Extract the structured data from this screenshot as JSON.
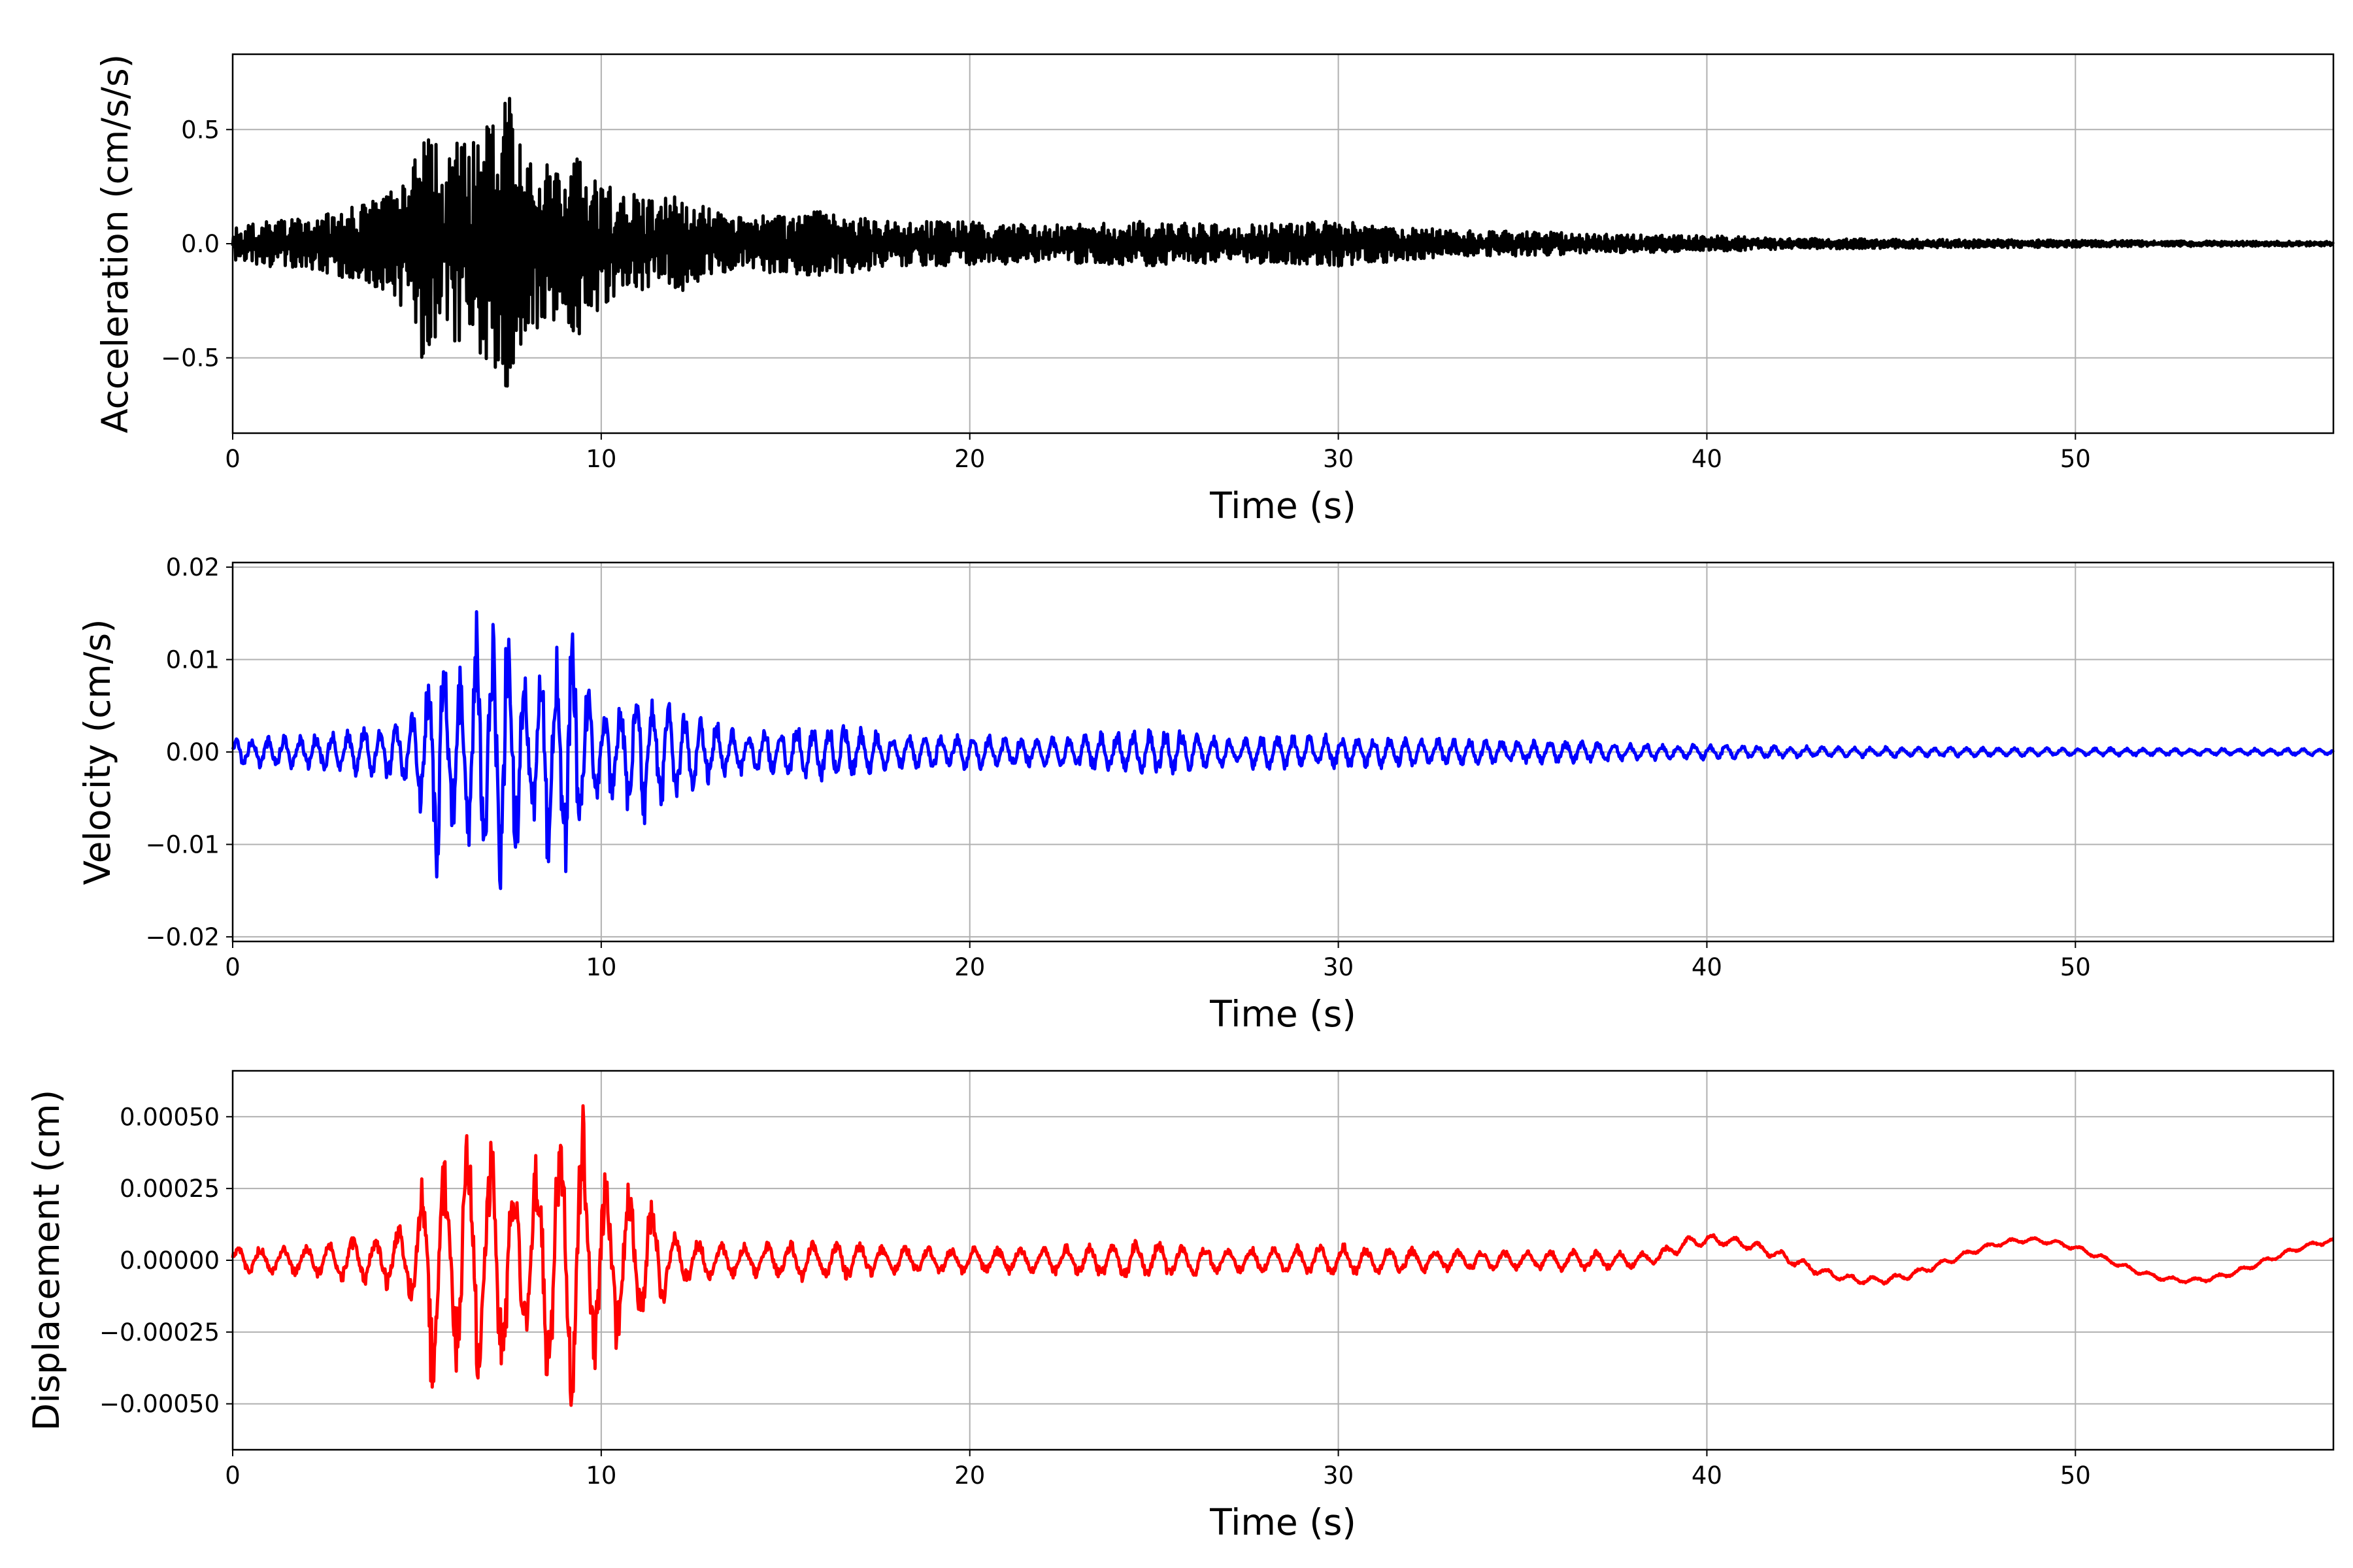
{
  "chart_data": [
    {
      "type": "line",
      "id": "acceleration",
      "xlabel": "Time (s)",
      "ylabel": "Acceleration (cm/s/s)",
      "xlim": [
        0,
        57
      ],
      "ylim": [
        -0.83,
        0.83
      ],
      "xticks": [
        0,
        10,
        20,
        30,
        40,
        50
      ],
      "xtick_labels": [
        "0",
        "10",
        "20",
        "30",
        "40",
        "50"
      ],
      "yticks": [
        0.5,
        0.0,
        -0.5
      ],
      "ytick_labels": [
        "0.5",
        "0.0",
        "−0.5"
      ],
      "grid": true,
      "color": "#000000",
      "series": [
        {
          "x": [
            0,
            1,
            2,
            3,
            4,
            4.8,
            5.2,
            5.4,
            5.5,
            5.6,
            5.8,
            6.0,
            6.4,
            6.6,
            6.8,
            7.1,
            7.3,
            7.4,
            7.5,
            7.7,
            8.0,
            8.5,
            8.8,
            9.0,
            9.4,
            9.6,
            10.0,
            10.5,
            11.0,
            11.5,
            12.0,
            13.0,
            14.0,
            16.0,
            18.0,
            20.0,
            22.0,
            25.0,
            27.0,
            30.0,
            33.0,
            36.0,
            38.0,
            40.0,
            42.0,
            45.0,
            48.0,
            50.0,
            53.0,
            57.0
          ],
          "amplitude": [
            0.08,
            0.1,
            0.11,
            0.15,
            0.2,
            0.3,
            0.55,
            0.6,
            0.55,
            0.3,
            0.35,
            0.45,
            0.45,
            0.5,
            0.55,
            0.55,
            0.75,
            0.68,
            0.7,
            0.5,
            0.35,
            0.4,
            0.35,
            0.42,
            0.4,
            0.28,
            0.3,
            0.2,
            0.22,
            0.18,
            0.22,
            0.15,
            0.12,
            0.15,
            0.1,
            0.1,
            0.08,
            0.1,
            0.08,
            0.1,
            0.06,
            0.05,
            0.04,
            0.035,
            0.025,
            0.02,
            0.018,
            0.015,
            0.012,
            0.01
          ]
        }
      ]
    },
    {
      "type": "line",
      "id": "velocity",
      "xlabel": "Time (s)",
      "ylabel": "Velocity (cm/s)",
      "xlim": [
        0,
        57
      ],
      "ylim": [
        -0.0205,
        0.0205
      ],
      "xticks": [
        0,
        10,
        20,
        30,
        40,
        50
      ],
      "xtick_labels": [
        "0",
        "10",
        "20",
        "30",
        "40",
        "50"
      ],
      "yticks": [
        0.02,
        0.01,
        0.0,
        -0.01,
        -0.02
      ],
      "ytick_labels": [
        "0.02",
        "0.01",
        "0.00",
        "−0.01",
        "−0.02"
      ],
      "grid": true,
      "color": "#0000ff",
      "series": [
        {
          "x": [
            0,
            1,
            2,
            3,
            4,
            4.8,
            5.2,
            5.4,
            5.6,
            5.8,
            6.0,
            6.4,
            6.6,
            6.8,
            7.1,
            7.3,
            7.4,
            7.6,
            8.0,
            8.5,
            8.8,
            9.0,
            9.3,
            9.6,
            10.0,
            10.5,
            11.0,
            11.5,
            12.0,
            13.0,
            14.0,
            16.0,
            18.0,
            20.0,
            22.0,
            25.0,
            27.0,
            30.0,
            33.0,
            36.0,
            38.0,
            40.0,
            42.0,
            45.0,
            48.0,
            50.0,
            53.0,
            57.0
          ],
          "amplitude": [
            0.0015,
            0.0018,
            0.002,
            0.0025,
            0.003,
            0.004,
            0.008,
            0.0135,
            0.0165,
            0.01,
            0.009,
            0.012,
            0.0155,
            0.014,
            0.016,
            0.0188,
            0.018,
            0.015,
            0.01,
            0.012,
            0.014,
            0.0138,
            0.0135,
            0.008,
            0.006,
            0.0065,
            0.0085,
            0.007,
            0.0055,
            0.0035,
            0.0025,
            0.0035,
            0.002,
            0.002,
            0.0017,
            0.0028,
            0.002,
            0.002,
            0.0015,
            0.0013,
            0.001,
            0.0009,
            0.0007,
            0.0006,
            0.0005,
            0.0005,
            0.0004,
            0.0004
          ]
        }
      ]
    },
    {
      "type": "line",
      "id": "displacement",
      "xlabel": "Time (s)",
      "ylabel": "Displacement (cm)",
      "xlim": [
        0,
        57
      ],
      "ylim": [
        -0.00066,
        0.00066
      ],
      "xticks": [
        0,
        10,
        20,
        30,
        40,
        50
      ],
      "xtick_labels": [
        "0",
        "10",
        "20",
        "30",
        "40",
        "50"
      ],
      "yticks": [
        0.0005,
        0.00025,
        0.0,
        -0.00025,
        -0.0005
      ],
      "ytick_labels": [
        "0.00050",
        "0.00025",
        "0.00000",
        "−0.00025",
        "−0.00050"
      ],
      "grid": true,
      "color": "#ff0000",
      "series": [
        {
          "x": [
            0,
            1,
            2,
            3,
            4,
            4.8,
            5.2,
            5.4,
            5.6,
            5.8,
            6.2,
            6.6,
            6.8,
            7.1,
            7.3,
            7.6,
            8.0,
            8.5,
            8.8,
            9.0,
            9.2,
            9.4,
            9.8,
            10.2,
            10.6,
            11.0,
            11.5,
            12.0,
            13.0,
            14.0,
            16.0,
            18.0,
            20.0,
            22.0,
            25.0,
            27.0,
            30.0,
            33.0,
            36.0,
            38.0,
            40.0,
            42.0,
            45.0,
            48.0,
            50.0,
            53.0,
            57.0
          ],
          "amplitude": [
            5e-05,
            5e-05,
            6e-05,
            8e-05,
            0.0001,
            0.00015,
            0.00033,
            0.00052,
            0.0004,
            0.00035,
            0.00045,
            0.00049,
            0.0004,
            0.00048,
            0.0005,
            0.00035,
            0.00035,
            0.0005,
            0.0005,
            0.00055,
            0.00055,
            0.0006,
            0.0004,
            0.00035,
            0.00033,
            0.00028,
            0.0002,
            0.0001,
            7e-05,
            6e-05,
            8e-05,
            5e-05,
            5e-05,
            5e-05,
            8e-05,
            5e-05,
            6e-05,
            4e-05,
            4e-05,
            3e-05,
            2e-05,
            2e-05,
            1.5e-05,
            1e-05,
            1e-05,
            1e-05,
            1e-05
          ]
        }
      ]
    }
  ]
}
